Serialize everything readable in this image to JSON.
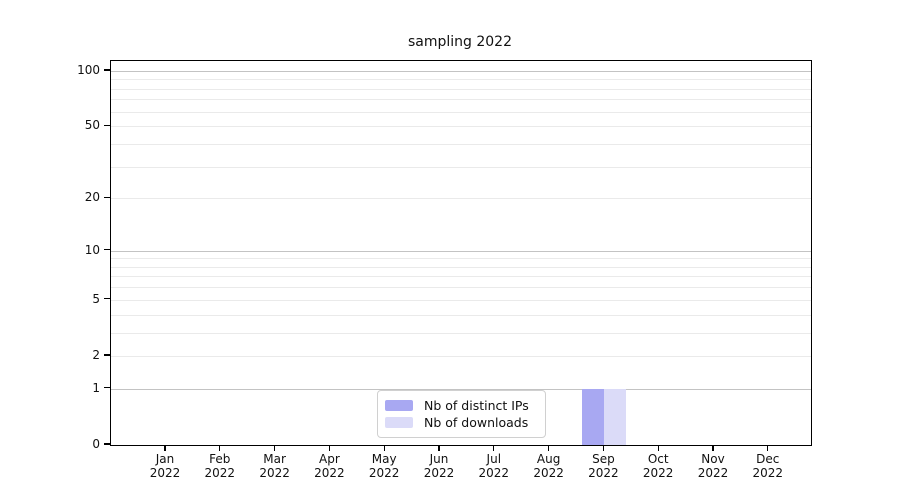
{
  "chart_data": {
    "type": "bar",
    "title": "sampling 2022",
    "xlabel": "",
    "ylabel": "",
    "categories": [
      "Jan 2022",
      "Feb 2022",
      "Mar 2022",
      "Apr 2022",
      "May 2022",
      "Jun 2022",
      "Jul 2022",
      "Aug 2022",
      "Sep 2022",
      "Oct 2022",
      "Nov 2022",
      "Dec 2022"
    ],
    "series": [
      {
        "name": "Nb of distinct IPs",
        "color": "#a8a8f2",
        "values": [
          0,
          0,
          0,
          0,
          0,
          0,
          0,
          0,
          1,
          0,
          0,
          0
        ]
      },
      {
        "name": "Nb of downloads",
        "color": "#dbdbf8",
        "values": [
          0,
          0,
          0,
          0,
          0,
          0,
          0,
          0,
          1,
          0,
          0,
          0
        ]
      }
    ],
    "yscale": "symlog",
    "ylim": [
      0,
      113
    ],
    "yticks": [
      100,
      50,
      20,
      10,
      5,
      2,
      1,
      0
    ],
    "major_gridlines": [
      1,
      10,
      100
    ],
    "minor_gridlines": [
      2,
      3,
      4,
      5,
      6,
      7,
      8,
      9,
      20,
      30,
      40,
      50,
      60,
      70,
      80,
      90
    ],
    "grid": true,
    "legend_position": "inside-bottom-center",
    "colors": {
      "major_grid": "#c3c3c3",
      "minor_grid": "#eaeaea",
      "axis": "#000000",
      "text": "#111111"
    }
  }
}
